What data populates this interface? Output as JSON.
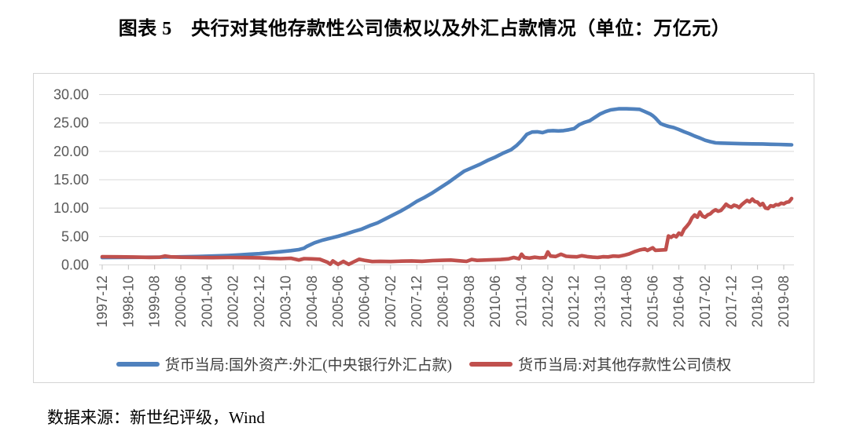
{
  "figure": {
    "title": "图表 5　央行对其他存款性公司债权以及外汇占款情况（单位：万亿元）",
    "source_note": "数据来源：新世纪评级，Wind"
  },
  "style": {
    "gridline_color": "#d9d9d9",
    "axis_tick_color": "#bfbfbf",
    "tick_label_color": "#595959",
    "series_blue": "#4F81BD",
    "series_red": "#C0504D"
  },
  "chart_data": {
    "type": "line",
    "title": "央行对其他存款性公司债权以及外汇占款情况",
    "unit": "万亿元",
    "grid": true,
    "legend_position": "bottom",
    "y_axis": {
      "min": 0,
      "max": 30,
      "step": 5,
      "tick_labels": [
        "0.00",
        "5.00",
        "10.00",
        "15.00",
        "20.00",
        "25.00",
        "30.00"
      ]
    },
    "x_axis": {
      "start": "1997-12",
      "end": "2019-11",
      "tick_interval_months": 10,
      "tick_labels": [
        "1997-12",
        "1998-10",
        "1999-08",
        "2000-06",
        "2001-04",
        "2002-02",
        "2002-12",
        "2003-10",
        "2004-08",
        "2005-06",
        "2006-04",
        "2007-02",
        "2007-12",
        "2008-10",
        "2009-08",
        "2010-06",
        "2011-04",
        "2012-02",
        "2012-12",
        "2013-10",
        "2014-08",
        "2015-06",
        "2016-04",
        "2017-02",
        "2017-12",
        "2018-10",
        "2019-08"
      ]
    },
    "series": [
      {
        "name": "货币当局:国外资产:外汇(中央银行外汇占款)",
        "color": "#4F81BD",
        "points": [
          [
            0,
            1.3
          ],
          [
            6,
            1.32
          ],
          [
            12,
            1.34
          ],
          [
            18,
            1.36
          ],
          [
            24,
            1.38
          ],
          [
            30,
            1.42
          ],
          [
            36,
            1.48
          ],
          [
            42,
            1.56
          ],
          [
            48,
            1.66
          ],
          [
            52,
            1.76
          ],
          [
            56,
            1.88
          ],
          [
            60,
            1.98
          ],
          [
            64,
            2.15
          ],
          [
            68,
            2.32
          ],
          [
            72,
            2.52
          ],
          [
            75,
            2.7
          ],
          [
            77,
            2.95
          ],
          [
            78,
            3.25
          ],
          [
            81,
            3.9
          ],
          [
            84,
            4.35
          ],
          [
            87,
            4.7
          ],
          [
            90,
            5.05
          ],
          [
            93,
            5.45
          ],
          [
            96,
            5.9
          ],
          [
            99,
            6.3
          ],
          [
            102,
            6.9
          ],
          [
            105,
            7.4
          ],
          [
            108,
            8.1
          ],
          [
            111,
            8.8
          ],
          [
            114,
            9.5
          ],
          [
            117,
            10.3
          ],
          [
            120,
            11.2
          ],
          [
            123,
            11.9
          ],
          [
            126,
            12.7
          ],
          [
            129,
            13.6
          ],
          [
            132,
            14.5
          ],
          [
            135,
            15.5
          ],
          [
            138,
            16.5
          ],
          [
            141,
            17.1
          ],
          [
            144,
            17.7
          ],
          [
            147,
            18.4
          ],
          [
            150,
            19.0
          ],
          [
            153,
            19.7
          ],
          [
            156,
            20.3
          ],
          [
            158,
            21.0
          ],
          [
            160,
            21.9
          ],
          [
            162,
            23.0
          ],
          [
            164,
            23.4
          ],
          [
            166,
            23.45
          ],
          [
            168,
            23.3
          ],
          [
            170,
            23.6
          ],
          [
            172,
            23.65
          ],
          [
            174,
            23.6
          ],
          [
            176,
            23.65
          ],
          [
            178,
            23.8
          ],
          [
            180,
            24.0
          ],
          [
            182,
            24.7
          ],
          [
            184,
            25.1
          ],
          [
            186,
            25.4
          ],
          [
            188,
            26.0
          ],
          [
            190,
            26.6
          ],
          [
            192,
            27.0
          ],
          [
            194,
            27.3
          ],
          [
            197,
            27.5
          ],
          [
            200,
            27.5
          ],
          [
            203,
            27.45
          ],
          [
            205,
            27.4
          ],
          [
            207,
            27.0
          ],
          [
            209,
            26.6
          ],
          [
            210,
            26.3
          ],
          [
            211,
            25.9
          ],
          [
            212,
            25.4
          ],
          [
            213,
            24.9
          ],
          [
            214,
            24.7
          ],
          [
            215,
            24.55
          ],
          [
            216,
            24.4
          ],
          [
            218,
            24.2
          ],
          [
            220,
            23.85
          ],
          [
            222,
            23.45
          ],
          [
            224,
            23.1
          ],
          [
            226,
            22.7
          ],
          [
            228,
            22.35
          ],
          [
            230,
            21.95
          ],
          [
            232,
            21.7
          ],
          [
            234,
            21.5
          ],
          [
            236,
            21.45
          ],
          [
            240,
            21.4
          ],
          [
            244,
            21.35
          ],
          [
            248,
            21.32
          ],
          [
            252,
            21.3
          ],
          [
            255,
            21.25
          ],
          [
            258,
            21.22
          ],
          [
            261,
            21.18
          ],
          [
            263,
            21.15
          ]
        ]
      },
      {
        "name": "货币当局:对其他存款性公司债权",
        "color": "#C0504D",
        "points": [
          [
            0,
            1.45
          ],
          [
            6,
            1.43
          ],
          [
            12,
            1.39
          ],
          [
            18,
            1.33
          ],
          [
            22,
            1.36
          ],
          [
            24,
            1.58
          ],
          [
            26,
            1.43
          ],
          [
            30,
            1.36
          ],
          [
            36,
            1.31
          ],
          [
            42,
            1.29
          ],
          [
            48,
            1.31
          ],
          [
            54,
            1.29
          ],
          [
            60,
            1.26
          ],
          [
            64,
            1.16
          ],
          [
            68,
            1.11
          ],
          [
            72,
            1.18
          ],
          [
            75,
            0.86
          ],
          [
            77,
            1.1
          ],
          [
            80,
            1.06
          ],
          [
            83,
            1.0
          ],
          [
            86,
            0.45
          ],
          [
            87,
            0.12
          ],
          [
            88,
            0.7
          ],
          [
            90,
            0.1
          ],
          [
            92,
            0.62
          ],
          [
            94,
            0.1
          ],
          [
            96,
            0.55
          ],
          [
            98,
            1.0
          ],
          [
            100,
            0.82
          ],
          [
            103,
            0.6
          ],
          [
            106,
            0.63
          ],
          [
            110,
            0.6
          ],
          [
            114,
            0.66
          ],
          [
            118,
            0.71
          ],
          [
            122,
            0.63
          ],
          [
            126,
            0.76
          ],
          [
            130,
            0.81
          ],
          [
            133,
            0.86
          ],
          [
            136,
            0.73
          ],
          [
            139,
            0.62
          ],
          [
            141,
            0.95
          ],
          [
            143,
            0.8
          ],
          [
            146,
            0.86
          ],
          [
            149,
            0.91
          ],
          [
            152,
            0.96
          ],
          [
            155,
            1.06
          ],
          [
            157,
            1.32
          ],
          [
            159,
            1.08
          ],
          [
            160,
            1.9
          ],
          [
            161,
            1.32
          ],
          [
            163,
            1.2
          ],
          [
            165,
            1.36
          ],
          [
            167,
            1.25
          ],
          [
            169,
            1.3
          ],
          [
            170,
            2.3
          ],
          [
            171,
            1.56
          ],
          [
            173,
            1.48
          ],
          [
            175,
            1.88
          ],
          [
            177,
            1.52
          ],
          [
            179,
            1.46
          ],
          [
            181,
            1.42
          ],
          [
            183,
            1.62
          ],
          [
            185,
            1.47
          ],
          [
            187,
            1.37
          ],
          [
            189,
            1.31
          ],
          [
            191,
            1.44
          ],
          [
            193,
            1.41
          ],
          [
            195,
            1.56
          ],
          [
            197,
            1.51
          ],
          [
            199,
            1.68
          ],
          [
            201,
            1.93
          ],
          [
            203,
            2.32
          ],
          [
            205,
            2.62
          ],
          [
            207,
            2.82
          ],
          [
            208,
            2.56
          ],
          [
            210,
            3.02
          ],
          [
            211,
            2.57
          ],
          [
            213,
            2.61
          ],
          [
            215,
            2.67
          ],
          [
            216,
            5.1
          ],
          [
            217,
            4.85
          ],
          [
            218,
            5.2
          ],
          [
            219,
            4.95
          ],
          [
            220,
            5.6
          ],
          [
            221,
            5.32
          ],
          [
            222,
            6.3
          ],
          [
            223,
            6.8
          ],
          [
            224,
            7.4
          ],
          [
            225,
            8.3
          ],
          [
            226,
            8.8
          ],
          [
            227,
            8.4
          ],
          [
            228,
            9.3
          ],
          [
            229,
            8.6
          ],
          [
            230,
            8.4
          ],
          [
            231,
            8.8
          ],
          [
            232,
            9.0
          ],
          [
            233,
            9.45
          ],
          [
            234,
            9.7
          ],
          [
            235,
            9.46
          ],
          [
            236,
            9.6
          ],
          [
            237,
            10.1
          ],
          [
            238,
            10.7
          ],
          [
            239,
            10.36
          ],
          [
            240,
            10.16
          ],
          [
            241,
            10.52
          ],
          [
            242,
            10.4
          ],
          [
            243,
            10.1
          ],
          [
            244,
            10.62
          ],
          [
            245,
            11.0
          ],
          [
            246,
            11.36
          ],
          [
            247,
            11.1
          ],
          [
            248,
            11.6
          ],
          [
            249,
            11.16
          ],
          [
            250,
            11.06
          ],
          [
            251,
            10.52
          ],
          [
            252,
            10.82
          ],
          [
            253,
            10.02
          ],
          [
            254,
            9.92
          ],
          [
            255,
            10.42
          ],
          [
            256,
            10.32
          ],
          [
            257,
            10.62
          ],
          [
            258,
            10.56
          ],
          [
            259,
            10.86
          ],
          [
            260,
            10.76
          ],
          [
            261,
            11.02
          ],
          [
            262,
            11.12
          ],
          [
            263,
            11.7
          ]
        ]
      }
    ]
  }
}
